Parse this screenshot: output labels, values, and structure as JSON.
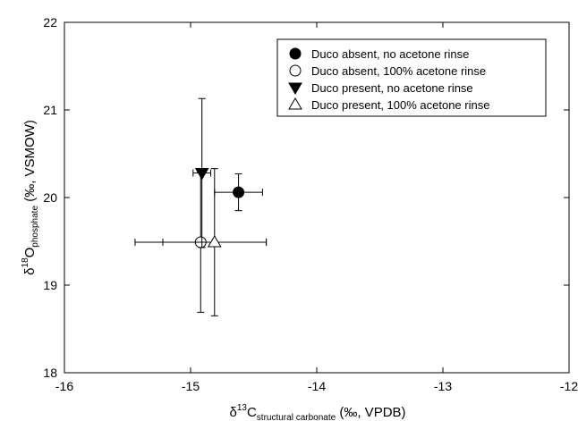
{
  "chart_data": {
    "type": "scatter",
    "xlim": [
      -16,
      -12
    ],
    "ylim": [
      18,
      22
    ],
    "xticks": [
      -16,
      -15,
      -14,
      -13,
      -12
    ],
    "yticks": [
      18,
      19,
      20,
      21,
      22
    ],
    "xlabel": {
      "prefix": "δ",
      "sup": "13",
      "main": "C",
      "sub": "structural carbonate",
      "suffix": " (‰, VPDB)"
    },
    "ylabel": {
      "prefix": "δ",
      "sup": "18",
      "main": "O",
      "sub": "phosphate",
      "suffix": " (‰, VSMOW)"
    },
    "legend_position": "top-right",
    "grid": false,
    "series": [
      {
        "name": "Duco absent, no acetone rinse",
        "marker": "filled-circle",
        "x": -14.62,
        "y": 20.06,
        "x_err": 0.19,
        "y_err": 0.21
      },
      {
        "name": "Duco absent, 100% acetone rinse",
        "marker": "open-circle",
        "x": -14.92,
        "y": 19.49,
        "x_err": 0.52,
        "y_err": 0.8
      },
      {
        "name": "Duco present, no acetone rinse",
        "marker": "filled-triangle-down",
        "x": -14.91,
        "y": 20.28,
        "x_err": 0.07,
        "y_err": 0.85
      },
      {
        "name": "Duco present, 100% acetone rinse",
        "marker": "open-triangle-up",
        "x": -14.81,
        "y": 19.49,
        "x_err": 0.41,
        "y_err": 0.84
      }
    ]
  }
}
